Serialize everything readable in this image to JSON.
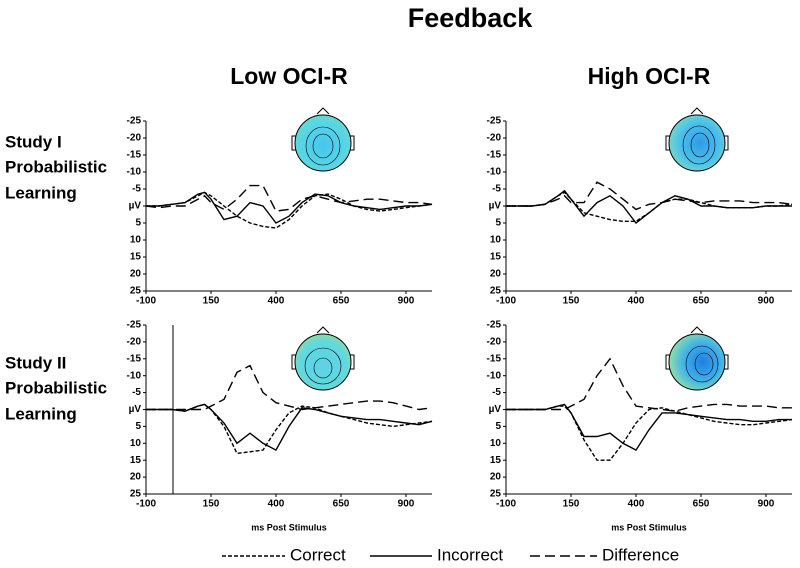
{
  "title": "Feedback",
  "columns": [
    "Low OCI-R",
    "High OCI-R"
  ],
  "rows": [
    [
      "Study I",
      "Probabilistic",
      "Learning"
    ],
    [
      "Study II",
      "Probabilistic",
      "Learning"
    ]
  ],
  "legend": [
    {
      "name": "Correct",
      "color": "#000000",
      "dash": "4,2"
    },
    {
      "name": "Incorrect",
      "color": "#000000",
      "dash": ""
    },
    {
      "name": "Difference",
      "color": "#000000",
      "dash": "10,5"
    }
  ],
  "chart_data": [
    {
      "type": "line",
      "x": [
        -100,
        -50,
        0,
        50,
        100,
        125,
        150,
        200,
        250,
        300,
        350,
        400,
        450,
        500,
        550,
        600,
        650,
        700,
        750,
        800,
        850,
        900,
        950,
        1000
      ],
      "xlim": [
        -100,
        1000
      ],
      "xticks": [
        -100,
        150,
        400,
        650,
        900
      ],
      "ylim": [
        25,
        -25
      ],
      "yticks": [
        -25,
        -20,
        -15,
        -10,
        -5,
        {
          "value": 0,
          "label": "µV"
        },
        5,
        10,
        15,
        20,
        25
      ],
      "series": [
        {
          "values": [
            0,
            0,
            -0.5,
            -1,
            -3,
            -4,
            -3,
            0,
            3,
            5,
            6,
            6.5,
            4,
            0,
            -3,
            -3.5,
            -2,
            0,
            1,
            1.5,
            1,
            0.5,
            0,
            -0.5
          ]
        },
        {
          "values": [
            0,
            0,
            -0.5,
            -1,
            -3.5,
            -4,
            -2,
            4,
            3,
            -1,
            0,
            5,
            3,
            -1,
            -3.5,
            -3,
            -1,
            0,
            0.5,
            1,
            0.5,
            0,
            0,
            -0.5
          ]
        },
        {
          "values": [
            0,
            0.5,
            0,
            0,
            -2,
            -3,
            -1,
            1,
            -2,
            -6,
            -6,
            1.5,
            1,
            -2,
            -3,
            -2,
            -1,
            -1.5,
            -2,
            -2,
            -1.5,
            -1,
            -1,
            -0.5
          ]
        }
      ]
    },
    {
      "type": "line",
      "x": [
        -100,
        -50,
        0,
        50,
        100,
        125,
        150,
        200,
        250,
        300,
        350,
        400,
        450,
        500,
        550,
        600,
        650,
        700,
        750,
        800,
        850,
        900,
        950,
        1000
      ],
      "xlim": [
        -100,
        1000
      ],
      "xticks": [
        -100,
        150,
        400,
        650,
        900
      ],
      "ylim": [
        25,
        -25
      ],
      "yticks": [
        -25,
        -20,
        -15,
        -10,
        -5,
        {
          "value": 0,
          "label": "µV"
        },
        5,
        10,
        15,
        20,
        25
      ],
      "series": [
        {
          "values": [
            0,
            0,
            0,
            -0.5,
            -3,
            -4,
            -2,
            2,
            3,
            4,
            4.5,
            4.5,
            2,
            -1,
            -2,
            -2,
            -1,
            0,
            0.5,
            0.5,
            0.5,
            0,
            0,
            -0.5
          ]
        },
        {
          "values": [
            0,
            0,
            0,
            -0.5,
            -3,
            -4.5,
            -2,
            3,
            -1,
            -3,
            0,
            5,
            2,
            -1,
            -3,
            -2,
            0,
            0,
            0.5,
            0.5,
            0.5,
            0,
            0,
            0
          ]
        },
        {
          "values": [
            0,
            0,
            0,
            -0.5,
            -2,
            -3,
            -1,
            -1,
            -7,
            -5,
            -2,
            1,
            -0.5,
            -1,
            -2,
            -1.5,
            -1,
            -1.5,
            -1.5,
            -1.5,
            -1,
            -1,
            -1,
            -0.5
          ]
        }
      ]
    },
    {
      "type": "line",
      "xlabel": "ms Post Stimulus",
      "x": [
        -100,
        -50,
        0,
        50,
        100,
        125,
        150,
        200,
        250,
        300,
        350,
        400,
        450,
        500,
        550,
        600,
        650,
        700,
        750,
        800,
        850,
        900,
        950,
        1000
      ],
      "xlim": [
        -100,
        1000
      ],
      "xticks": [
        -100,
        150,
        400,
        650,
        900
      ],
      "ylim": [
        25,
        -25
      ],
      "yticks": [
        -25,
        -20,
        -15,
        -10,
        -5,
        {
          "value": 0,
          "label": "µV"
        },
        5,
        10,
        15,
        20,
        25
      ],
      "series": [
        {
          "values": [
            0,
            0,
            0,
            0.5,
            -1,
            -1.5,
            0,
            5,
            13,
            12.5,
            12,
            6,
            1,
            -1,
            -0.5,
            1,
            2,
            3,
            4,
            4.5,
            5,
            4.5,
            4,
            3.5
          ]
        },
        {
          "values": [
            0,
            0,
            0,
            0.5,
            -1,
            -1.5,
            0,
            4,
            10,
            7,
            10,
            12,
            5,
            -0.5,
            0,
            1,
            2,
            2.5,
            3,
            3,
            3.5,
            4,
            4.5,
            3.5
          ]
        },
        {
          "values": [
            0,
            0,
            0,
            0,
            0,
            0,
            -1,
            -3,
            -11,
            -13,
            -5,
            -2,
            -1,
            0,
            -0.5,
            -1,
            -1.5,
            -2,
            -2.5,
            -2.5,
            -2,
            -1,
            0,
            -0.5
          ]
        }
      ]
    },
    {
      "type": "line",
      "xlabel": "ms Post Stimulus",
      "x": [
        -100,
        -50,
        0,
        50,
        100,
        125,
        150,
        200,
        250,
        300,
        350,
        400,
        450,
        500,
        550,
        600,
        650,
        700,
        750,
        800,
        850,
        900,
        950,
        1000
      ],
      "xlim": [
        -100,
        1000
      ],
      "xticks": [
        -100,
        150,
        400,
        650,
        900
      ],
      "ylim": [
        25,
        -25
      ],
      "yticks": [
        -25,
        -20,
        -15,
        -10,
        -5,
        {
          "value": 0,
          "label": "µV"
        },
        5,
        10,
        15,
        20,
        25
      ],
      "series": [
        {
          "values": [
            0,
            0,
            0,
            0,
            -1,
            -1,
            1,
            9,
            15,
            15,
            10,
            4,
            0,
            -0.5,
            0.5,
            1.5,
            2.5,
            3.5,
            4,
            4.5,
            4.5,
            4,
            3.5,
            3
          ]
        },
        {
          "values": [
            0,
            0,
            0,
            0,
            -1,
            -1.5,
            1,
            8,
            8,
            7,
            10,
            12,
            6,
            1,
            1,
            1.5,
            2,
            2.5,
            3,
            3,
            3.5,
            3.5,
            3,
            3
          ]
        },
        {
          "values": [
            0,
            0,
            0,
            0,
            0,
            0,
            -1,
            -3,
            -10,
            -15,
            -7,
            -1,
            -0.5,
            0,
            0.5,
            -0.5,
            -1,
            -1.5,
            -1.5,
            -1,
            -1,
            -1,
            -0.5,
            -0.5
          ]
        }
      ]
    }
  ]
}
